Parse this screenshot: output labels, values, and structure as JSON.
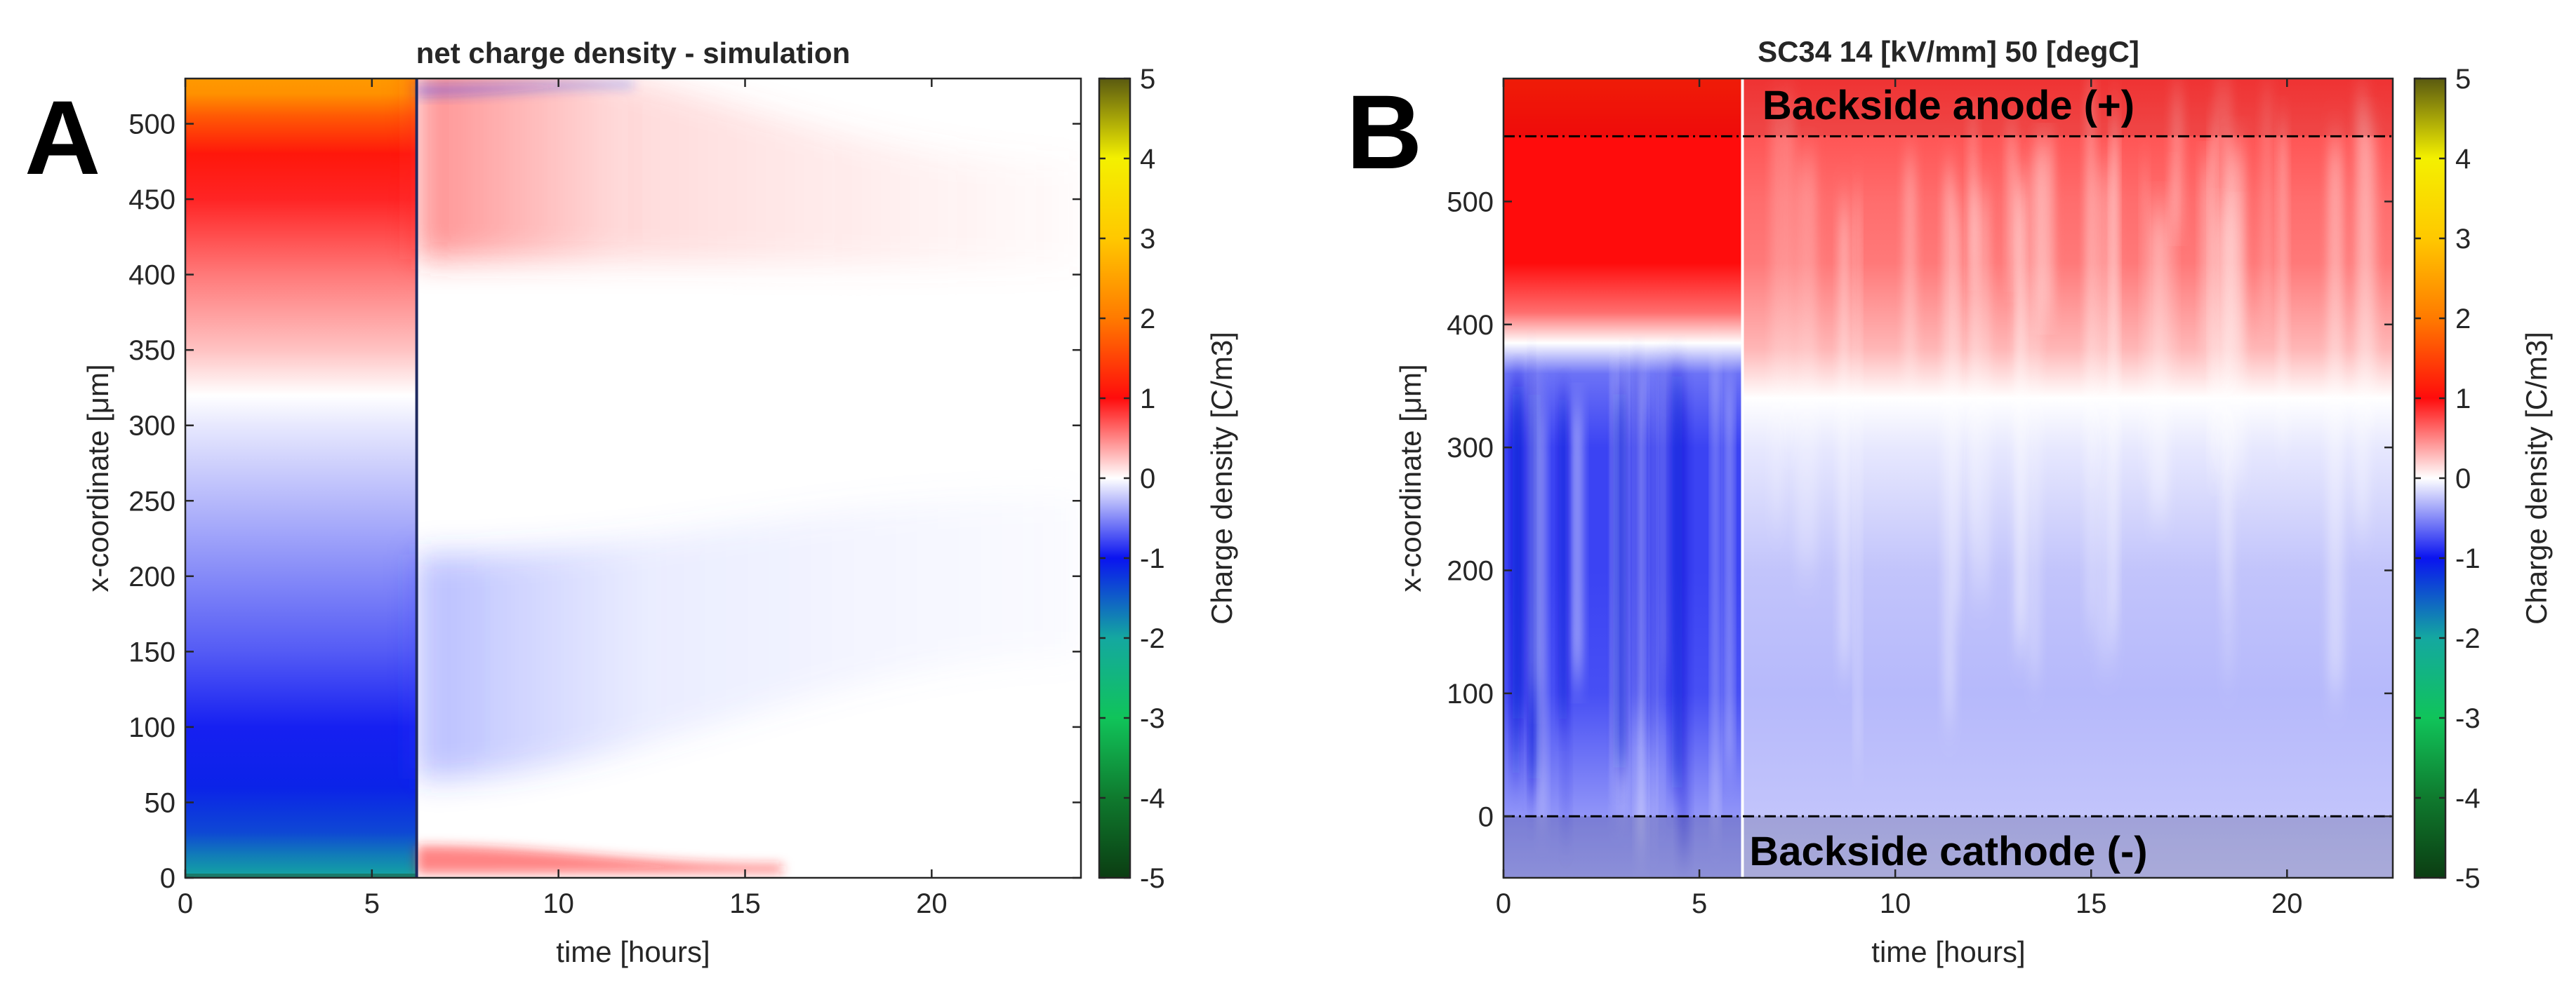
{
  "colormap": {
    "stops": [
      [
        -5,
        "#0b3d12"
      ],
      [
        -4,
        "#0f7a2e"
      ],
      [
        -3,
        "#10c45a"
      ],
      [
        -2,
        "#14a8a0"
      ],
      [
        -1,
        "#0a14f0"
      ],
      [
        0,
        "#ffffff"
      ],
      [
        1,
        "#ff0c0c"
      ],
      [
        2,
        "#ff7a00"
      ],
      [
        3,
        "#ffc800"
      ],
      [
        4,
        "#f4f000"
      ],
      [
        5,
        "#5a5a10"
      ]
    ]
  },
  "chart_data": [
    {
      "id": "A",
      "type": "heatmap",
      "panel_label": "A",
      "title": "net charge density - simulation",
      "xlabel": "time [hours]",
      "ylabel": "x-coordinate [μm]",
      "xlim": [
        0,
        24
      ],
      "ylim": [
        0,
        530
      ],
      "x_ticks": [
        0,
        5,
        10,
        15,
        20
      ],
      "y_ticks": [
        0,
        50,
        100,
        150,
        200,
        250,
        300,
        350,
        400,
        450,
        500
      ],
      "voltage_off_hours": 6.2,
      "profile_on": [
        [
          0,
          -2.0
        ],
        [
          15,
          -1.7
        ],
        [
          30,
          -1.35
        ],
        [
          60,
          -1.1
        ],
        [
          100,
          -0.95
        ],
        [
          150,
          -0.7
        ],
        [
          200,
          -0.5
        ],
        [
          250,
          -0.3
        ],
        [
          300,
          -0.1
        ],
        [
          320,
          0.0
        ],
        [
          350,
          0.25
        ],
        [
          400,
          0.55
        ],
        [
          450,
          0.9
        ],
        [
          480,
          1.1
        ],
        [
          505,
          1.7
        ],
        [
          520,
          2.3
        ],
        [
          530,
          2.4
        ]
      ],
      "colorbar": {
        "label": "Charge density [C/m3]",
        "range": [
          -5,
          5
        ],
        "ticks": [
          -5,
          -4,
          -3,
          -2,
          -1,
          0,
          1,
          2,
          3,
          4,
          5
        ]
      }
    },
    {
      "id": "B",
      "type": "heatmap",
      "panel_label": "B",
      "title": "SC34 14 [kV/mm] 50 [degC]",
      "xlabel": "time [hours]",
      "ylabel": "x-coordinate [μm]",
      "xlim": [
        0,
        22.7
      ],
      "ylim": [
        -50,
        600
      ],
      "x_ticks": [
        0,
        5,
        10,
        15,
        20
      ],
      "y_ticks": [
        0,
        100,
        200,
        300,
        400,
        500
      ],
      "voltage_off_hours": 6.1,
      "electrode_lines_um": [
        0,
        553
      ],
      "annotations": {
        "anode": "Backside anode (+)",
        "cathode": "Backside cathode (-)"
      },
      "profile_on": [
        [
          -50,
          -0.35
        ],
        [
          0,
          -0.45
        ],
        [
          50,
          -0.6
        ],
        [
          100,
          -0.75
        ],
        [
          200,
          -0.8
        ],
        [
          300,
          -0.8
        ],
        [
          360,
          -0.6
        ],
        [
          385,
          0.0
        ],
        [
          410,
          0.6
        ],
        [
          450,
          1.0
        ],
        [
          500,
          1.0
        ],
        [
          550,
          1.0
        ],
        [
          600,
          1.2
        ]
      ],
      "profile_off": [
        [
          -50,
          -0.2
        ],
        [
          0,
          -0.25
        ],
        [
          100,
          -0.3
        ],
        [
          200,
          -0.25
        ],
        [
          300,
          -0.1
        ],
        [
          340,
          0.0
        ],
        [
          380,
          0.3
        ],
        [
          450,
          0.55
        ],
        [
          500,
          0.6
        ],
        [
          553,
          0.7
        ],
        [
          600,
          0.8
        ]
      ],
      "colorbar": {
        "label": "Charge density [C/m3]",
        "range": [
          -5,
          5
        ],
        "ticks": [
          -5,
          -4,
          -3,
          -2,
          -1,
          0,
          1,
          2,
          3,
          4,
          5
        ]
      }
    }
  ]
}
